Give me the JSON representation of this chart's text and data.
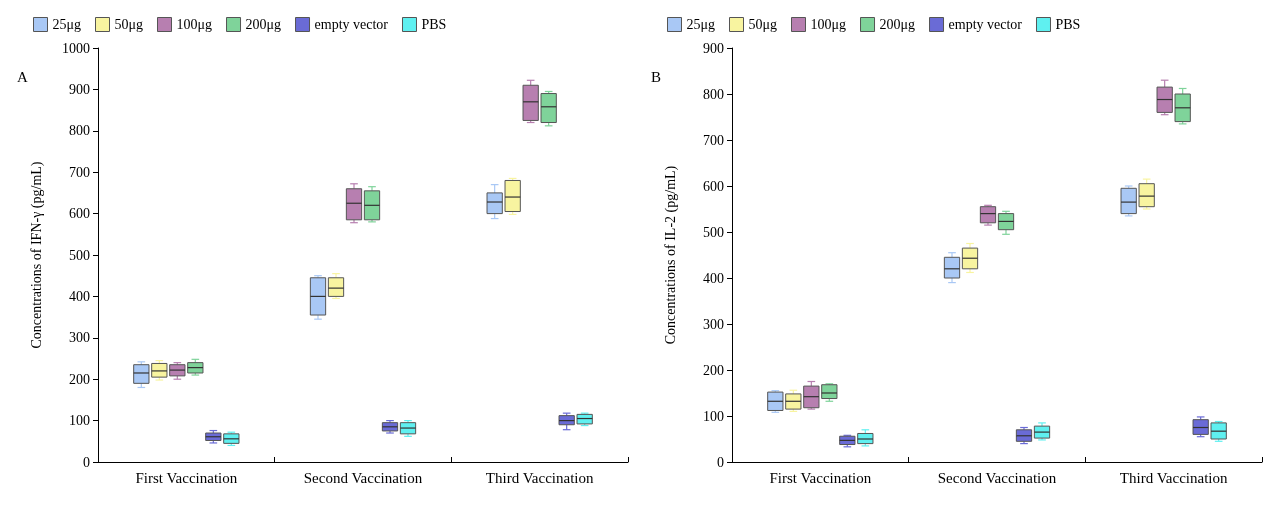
{
  "chart_data": [
    {
      "type": "box",
      "title": "A",
      "ylabel": "Concentrations of IFN-γ (pg/mL)",
      "categories": [
        "First Vaccination",
        "Second Vaccination",
        "Third Vaccination"
      ],
      "ylim": [
        0,
        1000
      ],
      "yticks": [
        0,
        100,
        200,
        300,
        400,
        500,
        600,
        700,
        800,
        900,
        1000
      ],
      "grid": false,
      "legend": "top left",
      "series": [
        {
          "name": "25μg",
          "color": "#a9c8f5",
          "boxes": [
            {
              "low": 180,
              "q1": 190,
              "median": 215,
              "q3": 235,
              "high": 242
            },
            {
              "low": 345,
              "q1": 355,
              "median": 400,
              "q3": 445,
              "high": 450
            },
            {
              "low": 588,
              "q1": 600,
              "median": 628,
              "q3": 650,
              "high": 670
            }
          ]
        },
        {
          "name": "50μg",
          "color": "#f8f4a0",
          "boxes": [
            {
              "low": 198,
              "q1": 205,
              "median": 220,
              "q3": 238,
              "high": 245
            },
            {
              "low": 395,
              "q1": 400,
              "median": 420,
              "q3": 445,
              "high": 455
            },
            {
              "low": 598,
              "q1": 605,
              "median": 640,
              "q3": 680,
              "high": 685
            }
          ]
        },
        {
          "name": "100μg",
          "color": "#b77fb0",
          "boxes": [
            {
              "low": 200,
              "q1": 208,
              "median": 222,
              "q3": 235,
              "high": 240
            },
            {
              "low": 578,
              "q1": 585,
              "median": 625,
              "q3": 660,
              "high": 672
            },
            {
              "low": 820,
              "q1": 825,
              "median": 870,
              "q3": 910,
              "high": 922
            }
          ]
        },
        {
          "name": "200μg",
          "color": "#7fd39a",
          "boxes": [
            {
              "low": 210,
              "q1": 215,
              "median": 228,
              "q3": 240,
              "high": 248
            },
            {
              "low": 580,
              "q1": 585,
              "median": 620,
              "q3": 655,
              "high": 665
            },
            {
              "low": 812,
              "q1": 820,
              "median": 858,
              "q3": 890,
              "high": 895
            }
          ]
        },
        {
          "name": "empty vector",
          "color": "#6a6bd6",
          "boxes": [
            {
              "low": 46,
              "q1": 52,
              "median": 61,
              "q3": 70,
              "high": 76
            },
            {
              "low": 70,
              "q1": 75,
              "median": 85,
              "q3": 95,
              "high": 100
            },
            {
              "low": 78,
              "q1": 90,
              "median": 100,
              "q3": 112,
              "high": 118
            }
          ]
        },
        {
          "name": "PBS",
          "color": "#5ff0f0",
          "boxes": [
            {
              "low": 40,
              "q1": 45,
              "median": 56,
              "q3": 68,
              "high": 72
            },
            {
              "low": 62,
              "q1": 68,
              "median": 82,
              "q3": 95,
              "high": 100
            },
            {
              "low": 88,
              "q1": 92,
              "median": 105,
              "q3": 115,
              "high": 118
            }
          ]
        }
      ]
    },
    {
      "type": "box",
      "title": "B",
      "ylabel": "Concentrations of IL-2 (pg/mL)",
      "categories": [
        "First Vaccination",
        "Second Vaccination",
        "Third Vaccination"
      ],
      "ylim": [
        0,
        900
      ],
      "yticks": [
        0,
        100,
        200,
        300,
        400,
        500,
        600,
        700,
        800,
        900
      ],
      "grid": false,
      "legend": "top left",
      "series": [
        {
          "name": "25μg",
          "color": "#a9c8f5",
          "boxes": [
            {
              "low": 108,
              "q1": 112,
              "median": 132,
              "q3": 152,
              "high": 155
            },
            {
              "low": 390,
              "q1": 400,
              "median": 420,
              "q3": 445,
              "high": 455
            },
            {
              "low": 535,
              "q1": 540,
              "median": 565,
              "q3": 595,
              "high": 600
            }
          ]
        },
        {
          "name": "50μg",
          "color": "#f8f4a0",
          "boxes": [
            {
              "low": 110,
              "q1": 115,
              "median": 132,
              "q3": 148,
              "high": 156
            },
            {
              "low": 412,
              "q1": 420,
              "median": 443,
              "q3": 465,
              "high": 475
            },
            {
              "low": 550,
              "q1": 555,
              "median": 578,
              "q3": 605,
              "high": 615
            }
          ]
        },
        {
          "name": "100μg",
          "color": "#b77fb0",
          "boxes": [
            {
              "low": 115,
              "q1": 118,
              "median": 142,
              "q3": 165,
              "high": 175
            },
            {
              "low": 515,
              "q1": 520,
              "median": 540,
              "q3": 555,
              "high": 558
            },
            {
              "low": 755,
              "q1": 760,
              "median": 788,
              "q3": 815,
              "high": 830
            }
          ]
        },
        {
          "name": "200μg",
          "color": "#7fd39a",
          "boxes": [
            {
              "low": 132,
              "q1": 138,
              "median": 150,
              "q3": 168,
              "high": 170
            },
            {
              "low": 495,
              "q1": 505,
              "median": 523,
              "q3": 540,
              "high": 545
            },
            {
              "low": 735,
              "q1": 740,
              "median": 770,
              "q3": 800,
              "high": 812
            }
          ]
        },
        {
          "name": "empty vector",
          "color": "#6a6bd6",
          "boxes": [
            {
              "low": 33,
              "q1": 38,
              "median": 47,
              "q3": 56,
              "high": 58
            },
            {
              "low": 40,
              "q1": 45,
              "median": 57,
              "q3": 70,
              "high": 75
            },
            {
              "low": 55,
              "q1": 60,
              "median": 75,
              "q3": 92,
              "high": 98
            }
          ]
        },
        {
          "name": "PBS",
          "color": "#5ff0f0",
          "boxes": [
            {
              "low": 35,
              "q1": 40,
              "median": 50,
              "q3": 62,
              "high": 70
            },
            {
              "low": 48,
              "q1": 52,
              "median": 65,
              "q3": 78,
              "high": 85
            },
            {
              "low": 45,
              "q1": 50,
              "median": 67,
              "q3": 85,
              "high": 88
            }
          ]
        }
      ]
    }
  ]
}
